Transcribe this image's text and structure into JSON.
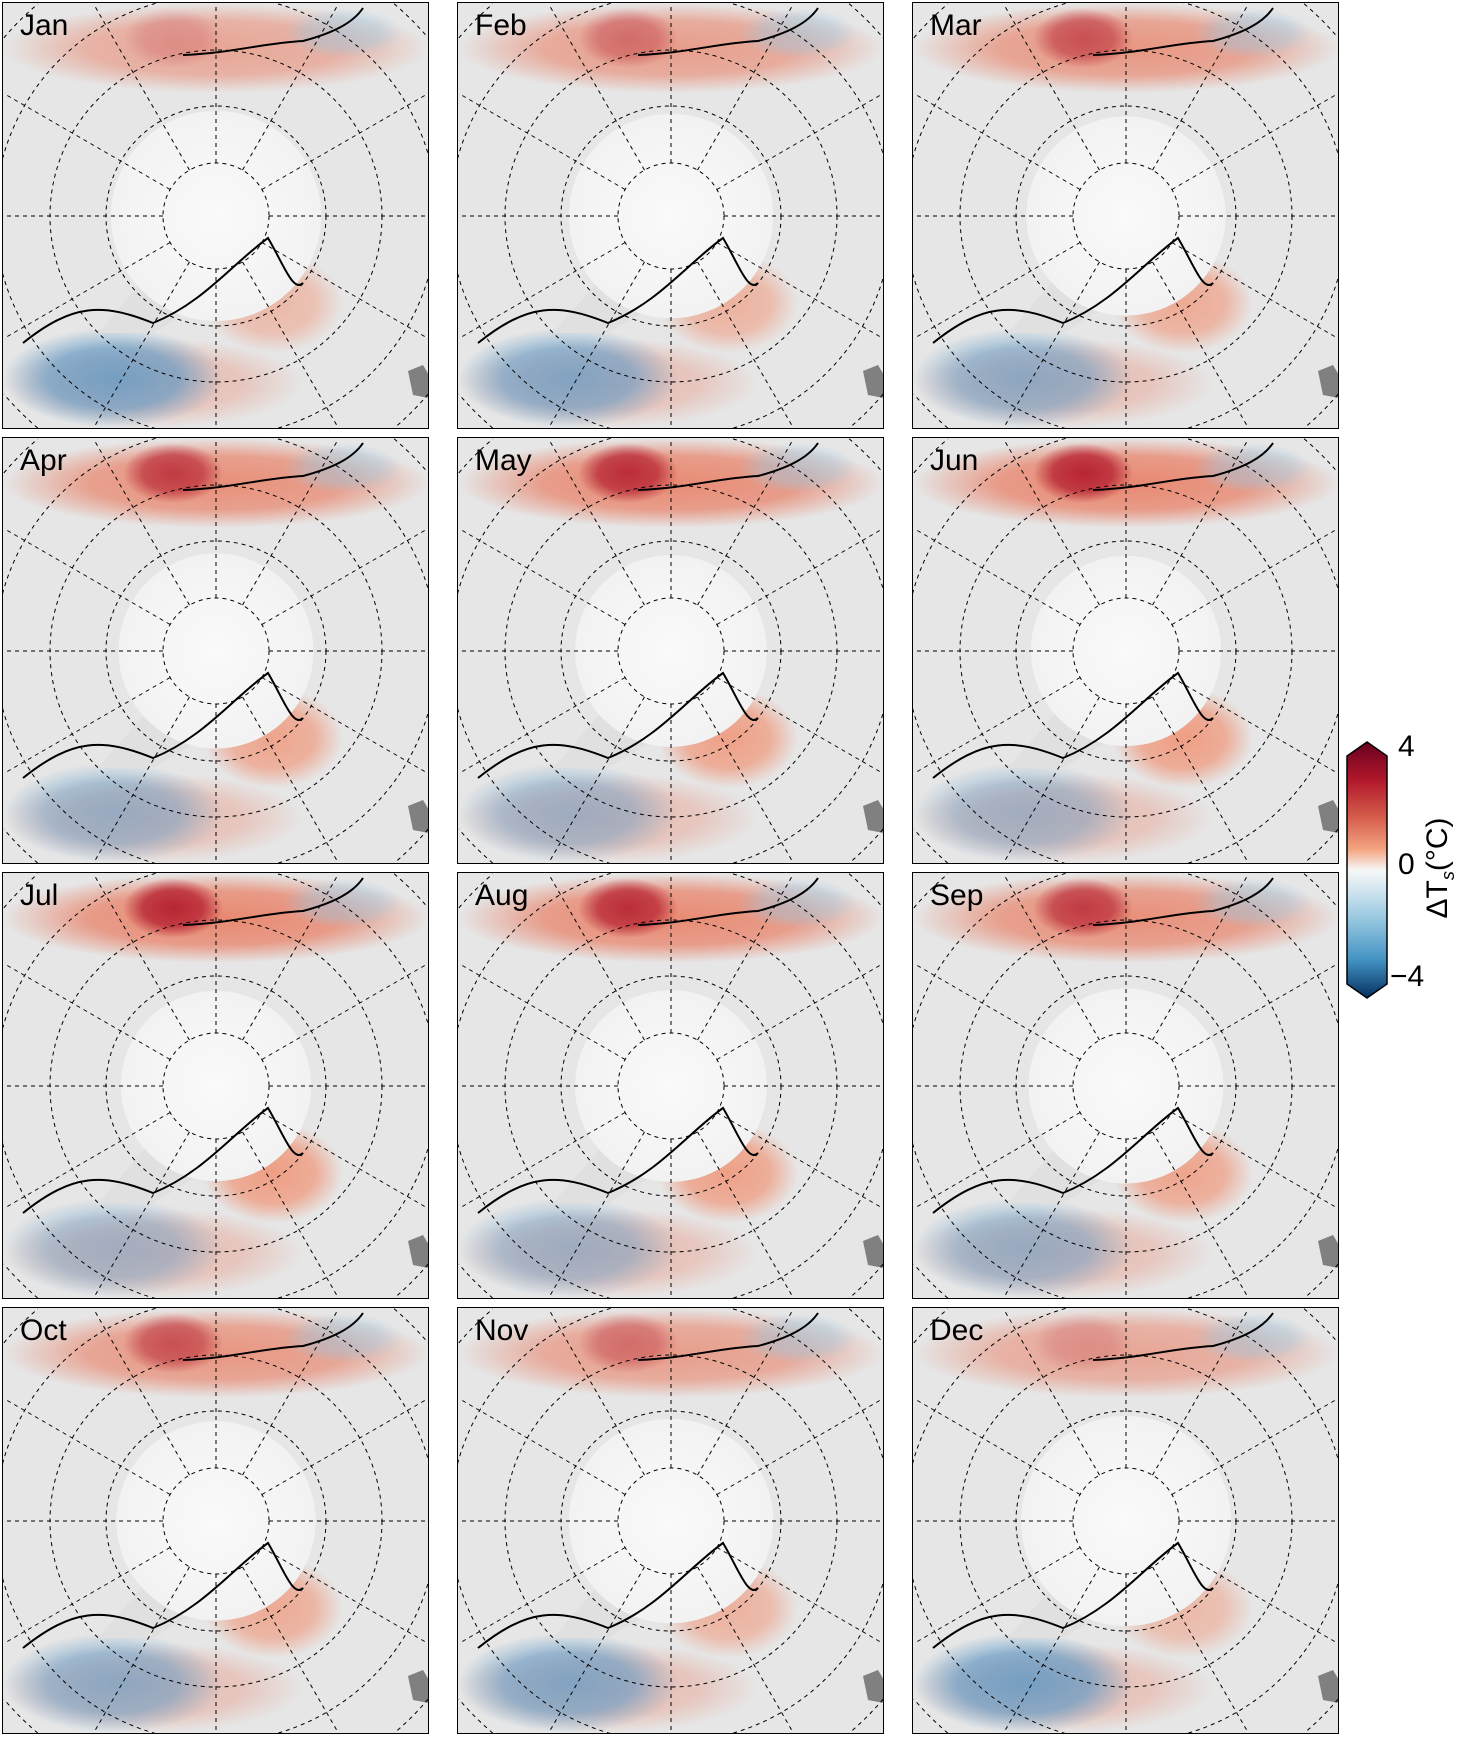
{
  "chart_data": {
    "type": "heatmap",
    "subtype": "polar-stereographic map panels (Arctic)",
    "panels": [
      "Jan",
      "Feb",
      "Mar",
      "Apr",
      "May",
      "Jun",
      "Jul",
      "Aug",
      "Sep",
      "Oct",
      "Nov",
      "Dec"
    ],
    "layout": "4 rows x 3 columns",
    "colorbar": {
      "label": "ΔT",
      "label_subscript": "s",
      "label_units": "(°C)",
      "ticks": [
        "4",
        "0",
        "−4"
      ],
      "range": [
        -4,
        4
      ],
      "colormap": "RdBu_r",
      "extend": "both",
      "position": "right"
    },
    "grid": "dashed latitude circles and meridians",
    "contour": "black line (sea-ice edge)",
    "colors": {
      "warm": "#b2182b",
      "cool": "#2166ac",
      "neutral": "#f7f7f7",
      "land": "#e6e6e6"
    }
  }
}
